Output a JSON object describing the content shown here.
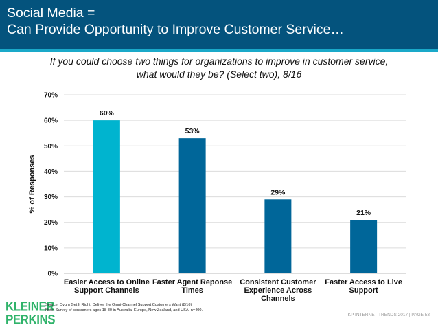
{
  "header": {
    "title_line1": "Social Media =",
    "title_line2": "Can Provide Opportunity to Improve Customer Service…"
  },
  "colors": {
    "header": "#04537d",
    "accent_line": "#1aa9c9",
    "highlight_bar": "#00b4cf",
    "bar": "#006699",
    "logo": "#2fb36a"
  },
  "chart_data": {
    "type": "bar",
    "title": "If you could choose two things for organizations to improve in customer service, what would they be? (Select two), 8/16",
    "title_line1": "If you could choose two things for organizations to improve in customer service,",
    "title_line2": "what would they be? (Select two), 8/16",
    "ylabel": "% of Responses",
    "xlabel": "",
    "categories": [
      "Easier Access to Online Support Channels",
      "Faster Agent Reponse Times",
      "Consistent Customer Experience Across Channels",
      "Faster Access to Live Support"
    ],
    "values": [
      60,
      53,
      29,
      21
    ],
    "data_labels": [
      "60%",
      "53%",
      "29%",
      "21%"
    ],
    "highlighted_index": 0,
    "ylim": [
      0,
      70
    ],
    "yticks": [
      0,
      10,
      20,
      30,
      40,
      50,
      60,
      70
    ],
    "ytick_labels": [
      "0%",
      "10%",
      "20%",
      "30%",
      "40%",
      "50%",
      "60%",
      "70%"
    ],
    "grid": true
  },
  "logo": {
    "line1": "KLEINER",
    "line2": "PERKINS"
  },
  "source": {
    "line1": "Source: Ovum Get It Right: Deliver the Omni-Channel Support Customers Want (8/16)",
    "line2": "Note: Survey of consumers ages 18-80 in Australia, Europe, New Zealand, and USA, n=400."
  },
  "footer": "KP INTERNET TRENDS 2017  |  PAGE 53"
}
